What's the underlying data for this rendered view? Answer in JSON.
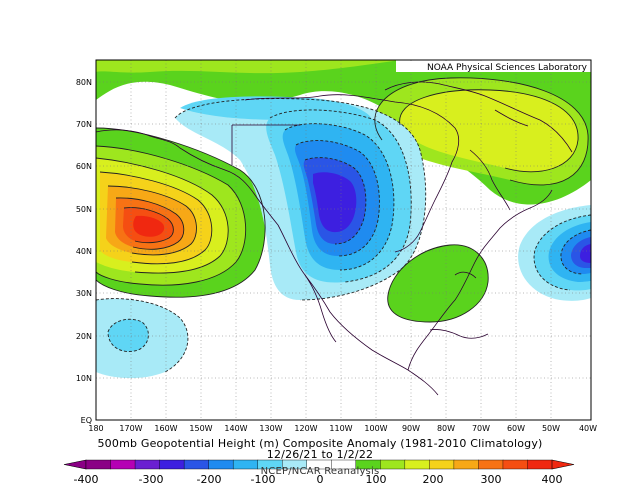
{
  "map": {
    "credit": "NOAA Physical Sciences Laboratory",
    "lat_ticks": [
      "EQ",
      "10N",
      "20N",
      "30N",
      "40N",
      "50N",
      "60N",
      "70N",
      "80N"
    ],
    "lon_ticks": [
      "180",
      "170W",
      "160W",
      "150W",
      "140W",
      "130W",
      "120W",
      "110W",
      "100W",
      "90W",
      "80W",
      "70W",
      "60W",
      "50W",
      "40W"
    ],
    "extent": {
      "lon_min": -180,
      "lon_max": -40,
      "lat_min": 0,
      "lat_max": 85
    }
  },
  "caption": {
    "line1": "500mb Geopotential Height (m) Composite Anomaly (1981-2010 Climatology)",
    "line2": "12/26/21 to 1/2/22",
    "line3": "NCEP/NCAR Reanalysis"
  },
  "colorbar": {
    "labels": [
      "-400",
      "-300",
      "-200",
      "-100",
      "0",
      "100",
      "200",
      "300",
      "400"
    ],
    "colors": [
      "#8a0085",
      "#b500b4",
      "#6a1fd1",
      "#3d1fe0",
      "#2a55e6",
      "#1f8bf0",
      "#2fb4f2",
      "#5fd6f5",
      "#a8eaf7",
      "#ffffff",
      "#ffffff",
      "#5ad31d",
      "#9ee61e",
      "#d8ef1e",
      "#f5d21a",
      "#f7a816",
      "#f77214",
      "#f54e12",
      "#f02810"
    ]
  },
  "anomaly_centers": [
    {
      "type": "positive",
      "lon": -163,
      "lat": 46,
      "peak_m": 320
    },
    {
      "type": "negative",
      "lon": -112,
      "lat": 51,
      "peak_m": -250
    },
    {
      "type": "negative",
      "lon": -41,
      "lat": 40,
      "peak_m": -220
    },
    {
      "type": "positive",
      "lon": -65,
      "lat": 72,
      "peak_m": 200
    },
    {
      "type": "positive",
      "lon": -82,
      "lat": 32,
      "peak_m": 80
    },
    {
      "type": "negative",
      "lon": -165,
      "lat": 20,
      "peak_m": -90
    }
  ]
}
